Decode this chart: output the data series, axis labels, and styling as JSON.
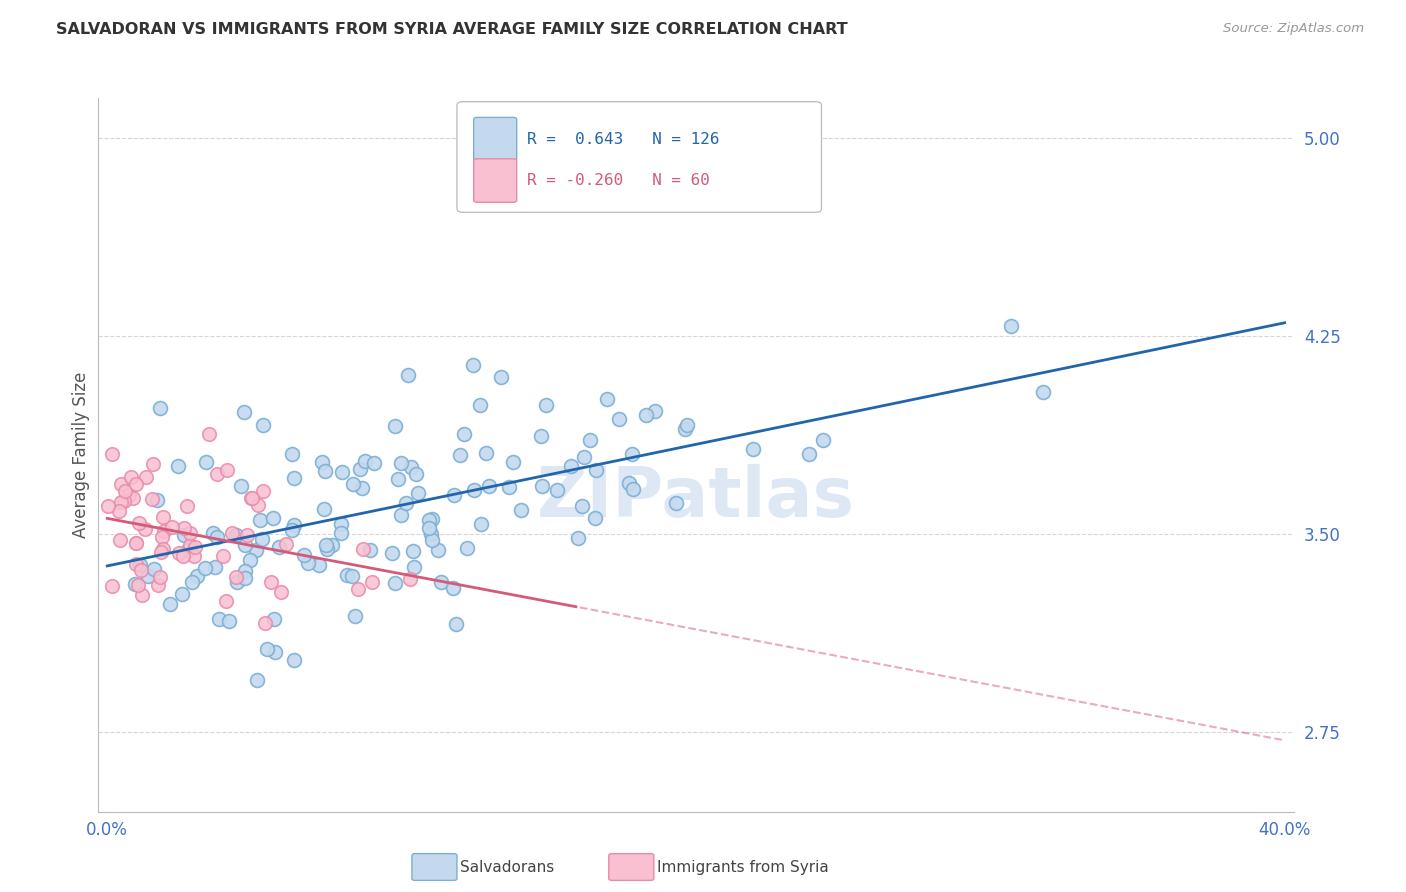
{
  "title": "SALVADORAN VS IMMIGRANTS FROM SYRIA AVERAGE FAMILY SIZE CORRELATION CHART",
  "source": "Source: ZipAtlas.com",
  "ylabel": "Average Family Size",
  "watermark": "ZIPatlas",
  "xmin": 0.0,
  "xmax": 0.4,
  "ymin": 2.45,
  "ymax": 5.15,
  "yticks": [
    2.75,
    3.5,
    4.25,
    5.0
  ],
  "xticks": [
    0.0,
    0.1,
    0.2,
    0.3,
    0.4
  ],
  "xtick_labels": [
    "0.0%",
    "",
    "",
    "",
    "40.0%"
  ],
  "legend_r1": "R =  0.643",
  "legend_n1": "N = 126",
  "legend_r2": "R = -0.260",
  "legend_n2": "N = 60",
  "blue_edge_color": "#7bafd4",
  "blue_fill_color": "#c5d9ee",
  "blue_line_color": "#2166ac",
  "pink_edge_color": "#e88aaa",
  "pink_fill_color": "#f8c0d0",
  "pink_line_color": "#d45a7a",
  "axis_tick_color": "#4472c4",
  "grid_color": "#cccccc",
  "salvadorans_label": "Salvadorans",
  "syria_label": "Immigrants from Syria",
  "blue_R": 0.643,
  "blue_N": 126,
  "pink_R": -0.26,
  "pink_N": 60,
  "blue_intercept": 3.38,
  "blue_slope": 2.3,
  "pink_intercept": 3.56,
  "pink_slope": -2.1
}
